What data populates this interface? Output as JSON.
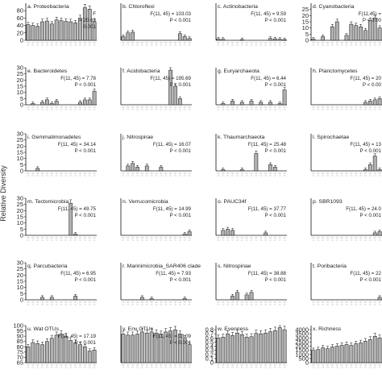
{
  "figure": {
    "y_axis_title": "Relative Diversity"
  },
  "chart_data": [
    {
      "type": "bar",
      "label": "a. Proteobacteria",
      "stat1": "F",
      "stat2": "= 20.63",
      "stat3": "0.001",
      "ylim": [
        0,
        100
      ],
      "yticks": [
        0,
        20,
        40,
        60,
        80
      ],
      "values": [
        42,
        40,
        38,
        50,
        52,
        44,
        55,
        53,
        51,
        50,
        47,
        60,
        88,
        84,
        50
      ]
    },
    {
      "type": "bar",
      "label": "b. Chloroflexi",
      "stat1": "F(11, 45) = 103.03",
      "stat2": "P < 0.001",
      "ylim": [
        0,
        100
      ],
      "yticks": [],
      "values": [
        10,
        20,
        22,
        0,
        0,
        0,
        0,
        0,
        0,
        0,
        0,
        0,
        18,
        10,
        5
      ]
    },
    {
      "type": "bar",
      "label": "c. Actinobacteria",
      "stat1": "F(11, 45) = 9.59",
      "stat2": "P < 0.001",
      "ylim": [
        0,
        100
      ],
      "yticks": [],
      "values": [
        4,
        3,
        0,
        0,
        0,
        2,
        0,
        0,
        0,
        0,
        0,
        5,
        4,
        3,
        2
      ]
    },
    {
      "type": "bar",
      "label": "d. Cyanobacteria",
      "stat1": "F(11,45) =",
      "stat2": "P < 0.00",
      "ylim": [
        0,
        30
      ],
      "yticks": [
        0,
        5,
        10,
        15,
        20,
        25
      ],
      "values": [
        1,
        0,
        3,
        0,
        11,
        15,
        0,
        4,
        13,
        12,
        11,
        8,
        16,
        18,
        10
      ]
    },
    {
      "type": "bar",
      "label": "e. Bacteroidetes",
      "stat1": "F(11, 45) = 7.78",
      "stat2": "P < 0.001",
      "ylim": [
        0,
        30
      ],
      "yticks": [
        0,
        5,
        10,
        15,
        20,
        25,
        30
      ],
      "values": [
        0,
        1,
        0,
        2,
        4,
        1,
        3,
        0,
        0,
        0,
        0,
        2,
        4,
        4,
        11
      ]
    },
    {
      "type": "bar",
      "label": "f. Acidobacteria",
      "stat1": "F(11, 45) = 195.69",
      "stat2": "P < 0.001",
      "ylim": [
        0,
        30
      ],
      "yticks": [],
      "values": [
        0,
        0,
        0,
        0,
        0,
        0,
        0,
        0,
        0,
        0,
        28,
        15,
        5,
        0,
        0
      ]
    },
    {
      "type": "bar",
      "label": "g. Euryarchaeota",
      "stat1": "F(11, 45) = 6.44",
      "stat2": "P < 0.001",
      "ylim": [
        0,
        30
      ],
      "yticks": [],
      "values": [
        0,
        1,
        0,
        3,
        0,
        2,
        0,
        3,
        0,
        2,
        0,
        2,
        0,
        1,
        12
      ]
    },
    {
      "type": "bar",
      "label": "h. Planctomycetes",
      "stat1": "F(11, 45) = 20",
      "stat2": "P < 0.00",
      "ylim": [
        0,
        30
      ],
      "yticks": [],
      "values": [
        0,
        0,
        0,
        0,
        0,
        0,
        0,
        0,
        0,
        0,
        0,
        2,
        3,
        4,
        5
      ]
    },
    {
      "type": "bar",
      "label": "i. Gemmatimonadetes",
      "stat1": "F(11, 45) = 34.14",
      "stat2": "P < 0.001",
      "ylim": [
        0,
        30
      ],
      "yticks": [
        0,
        5,
        10,
        15,
        20,
        25,
        30
      ],
      "values": [
        0,
        0,
        2,
        0,
        0,
        0,
        0,
        0,
        0,
        0,
        0,
        0,
        0,
        0,
        0
      ]
    },
    {
      "type": "bar",
      "label": "j. Nitrospirae",
      "stat1": "F(11, 45) = 16.07",
      "stat2": "P < 0.001",
      "ylim": [
        0,
        30
      ],
      "yticks": [],
      "values": [
        0,
        4,
        6,
        3,
        0,
        4,
        0,
        0,
        3,
        0,
        0,
        0,
        0,
        0,
        0
      ]
    },
    {
      "type": "bar",
      "label": "k. Thaumarchaeota",
      "stat1": "F(11, 45) = 25.48",
      "stat2": "P < 0.001",
      "ylim": [
        0,
        30
      ],
      "yticks": [],
      "values": [
        0,
        1,
        0,
        0,
        0,
        1,
        0,
        0,
        14,
        0,
        0,
        5,
        3,
        0,
        0
      ]
    },
    {
      "type": "bar",
      "label": "l. Spirochaetae",
      "stat1": "F(11, 45) = 13",
      "stat2": "P < 0.001",
      "ylim": [
        0,
        30
      ],
      "yticks": [],
      "values": [
        0,
        0,
        0,
        0,
        0,
        0,
        0,
        0,
        0,
        0,
        0,
        1,
        5,
        12,
        1
      ]
    },
    {
      "type": "bar",
      "label": "m. Tectomicrobia",
      "stat1": "F(11, 45) = 49.75",
      "stat2": "P < 0.001",
      "ylim": [
        0,
        30
      ],
      "yticks": [
        0,
        5,
        10,
        15,
        20,
        25,
        30
      ],
      "values": [
        0,
        0,
        0,
        0,
        0,
        0,
        0,
        0,
        0,
        26,
        1,
        0,
        0,
        0,
        0
      ]
    },
    {
      "type": "bar",
      "label": "n. Verrucomicrobia",
      "stat1": "F(11, 45) = 14.99",
      "stat2": "P < 0.001",
      "ylim": [
        0,
        30
      ],
      "yticks": [],
      "values": [
        0,
        0,
        0,
        0,
        0,
        0,
        0,
        0,
        0,
        0,
        0,
        0,
        0,
        1,
        3
      ]
    },
    {
      "type": "bar",
      "label": "o. PAUC34f",
      "stat1": "F(11, 45) = 37.77",
      "stat2": "P < 0.001",
      "ylim": [
        0,
        30
      ],
      "yticks": [],
      "values": [
        0,
        4,
        5,
        4,
        0,
        0,
        0,
        0,
        0,
        0,
        2,
        0,
        0,
        0,
        0
      ]
    },
    {
      "type": "bar",
      "label": "p. SBR1093",
      "stat1": "F(11, 45) = 24.0",
      "stat2": "P < 0.001",
      "ylim": [
        0,
        30
      ],
      "yticks": [],
      "values": [
        0,
        0,
        0,
        0,
        0,
        0,
        0,
        0,
        0,
        0,
        0,
        0,
        0,
        2,
        3
      ]
    },
    {
      "type": "bar",
      "label": "q. Parcubacteria",
      "stat1": "F(11, 45) = 6.95",
      "stat2": "P < 0.001",
      "ylim": [
        0,
        30
      ],
      "yticks": [
        0,
        5,
        10,
        15,
        20,
        25,
        30
      ],
      "values": [
        0,
        0,
        0,
        2,
        0,
        2,
        0,
        0,
        0,
        0,
        3,
        0,
        0,
        0,
        0
      ]
    },
    {
      "type": "bar",
      "label": "r. Marinimicrobia_SAR406 clade",
      "stat1": "F(11, 45) = 7.93",
      "stat2": "P < 0.001",
      "ylim": [
        0,
        30
      ],
      "yticks": [],
      "values": [
        0,
        0,
        0,
        0,
        2,
        0,
        1,
        0,
        0,
        0,
        0,
        0,
        0,
        1,
        0
      ]
    },
    {
      "type": "bar",
      "label": "s. Nitrospinae",
      "stat1": "F(11, 45) = 38.88",
      "stat2": "P < 0.001",
      "ylim": [
        0,
        30
      ],
      "yticks": [],
      "values": [
        0,
        0,
        0,
        3,
        6,
        0,
        4,
        6,
        0,
        0,
        0,
        0,
        0,
        0,
        0
      ]
    },
    {
      "type": "bar",
      "label": "t. Poribacteria",
      "stat1": "F(11, 45) = 22",
      "stat2": "P < 0.001",
      "ylim": [
        0,
        30
      ],
      "yticks": [],
      "values": [
        0,
        0,
        0,
        0,
        0,
        0,
        0,
        0,
        0,
        0,
        0,
        0,
        0,
        0,
        2
      ]
    },
    {
      "type": "bar",
      "label": "u. Wat OTUs",
      "stat1": "F(11, 45) = 17.19",
      "stat2": "P < 0.001",
      "ylim": [
        65,
        100
      ],
      "yticks": [
        65,
        70,
        75,
        80,
        85,
        90,
        95,
        100
      ],
      "values": [
        80,
        84,
        83,
        82,
        85,
        88,
        91,
        92,
        90,
        86,
        84,
        82,
        80,
        76,
        77
      ]
    },
    {
      "type": "bar",
      "label": "v. Env OTUs",
      "stat1": "F(11, 45) = 13.09",
      "stat2": "P < 0.001",
      "ylim": [
        65,
        100
      ],
      "yticks": [],
      "values": [
        92,
        91,
        91,
        92,
        94,
        93,
        94,
        93,
        92,
        94,
        95,
        96,
        92,
        88,
        82
      ]
    },
    {
      "type": "bar",
      "label": "w. Evenness",
      "stat1": "",
      "stat2": "",
      "ylim": [
        0,
        0.9
      ],
      "yticks": [
        0,
        0.1,
        0.2,
        0.3,
        0.4,
        0.5,
        0.6,
        0.7,
        0.8
      ],
      "values": [
        0.6,
        0.62,
        0.7,
        0.66,
        0.72,
        0.68,
        0.62,
        0.63,
        0.71,
        0.7,
        0.72,
        0.75,
        0.78,
        0.85,
        0.8
      ]
    },
    {
      "type": "bar",
      "label": "x. Richness",
      "stat1": "",
      "stat2": "",
      "ylim": [
        0,
        4500
      ],
      "yticks": [
        0,
        500,
        1000,
        1500,
        2000,
        2500,
        3000,
        3500,
        4000
      ],
      "values": [
        1500,
        1600,
        1800,
        1700,
        1900,
        2000,
        2100,
        2200,
        2100,
        2300,
        2400,
        2600,
        2800,
        3200,
        3000
      ]
    }
  ]
}
